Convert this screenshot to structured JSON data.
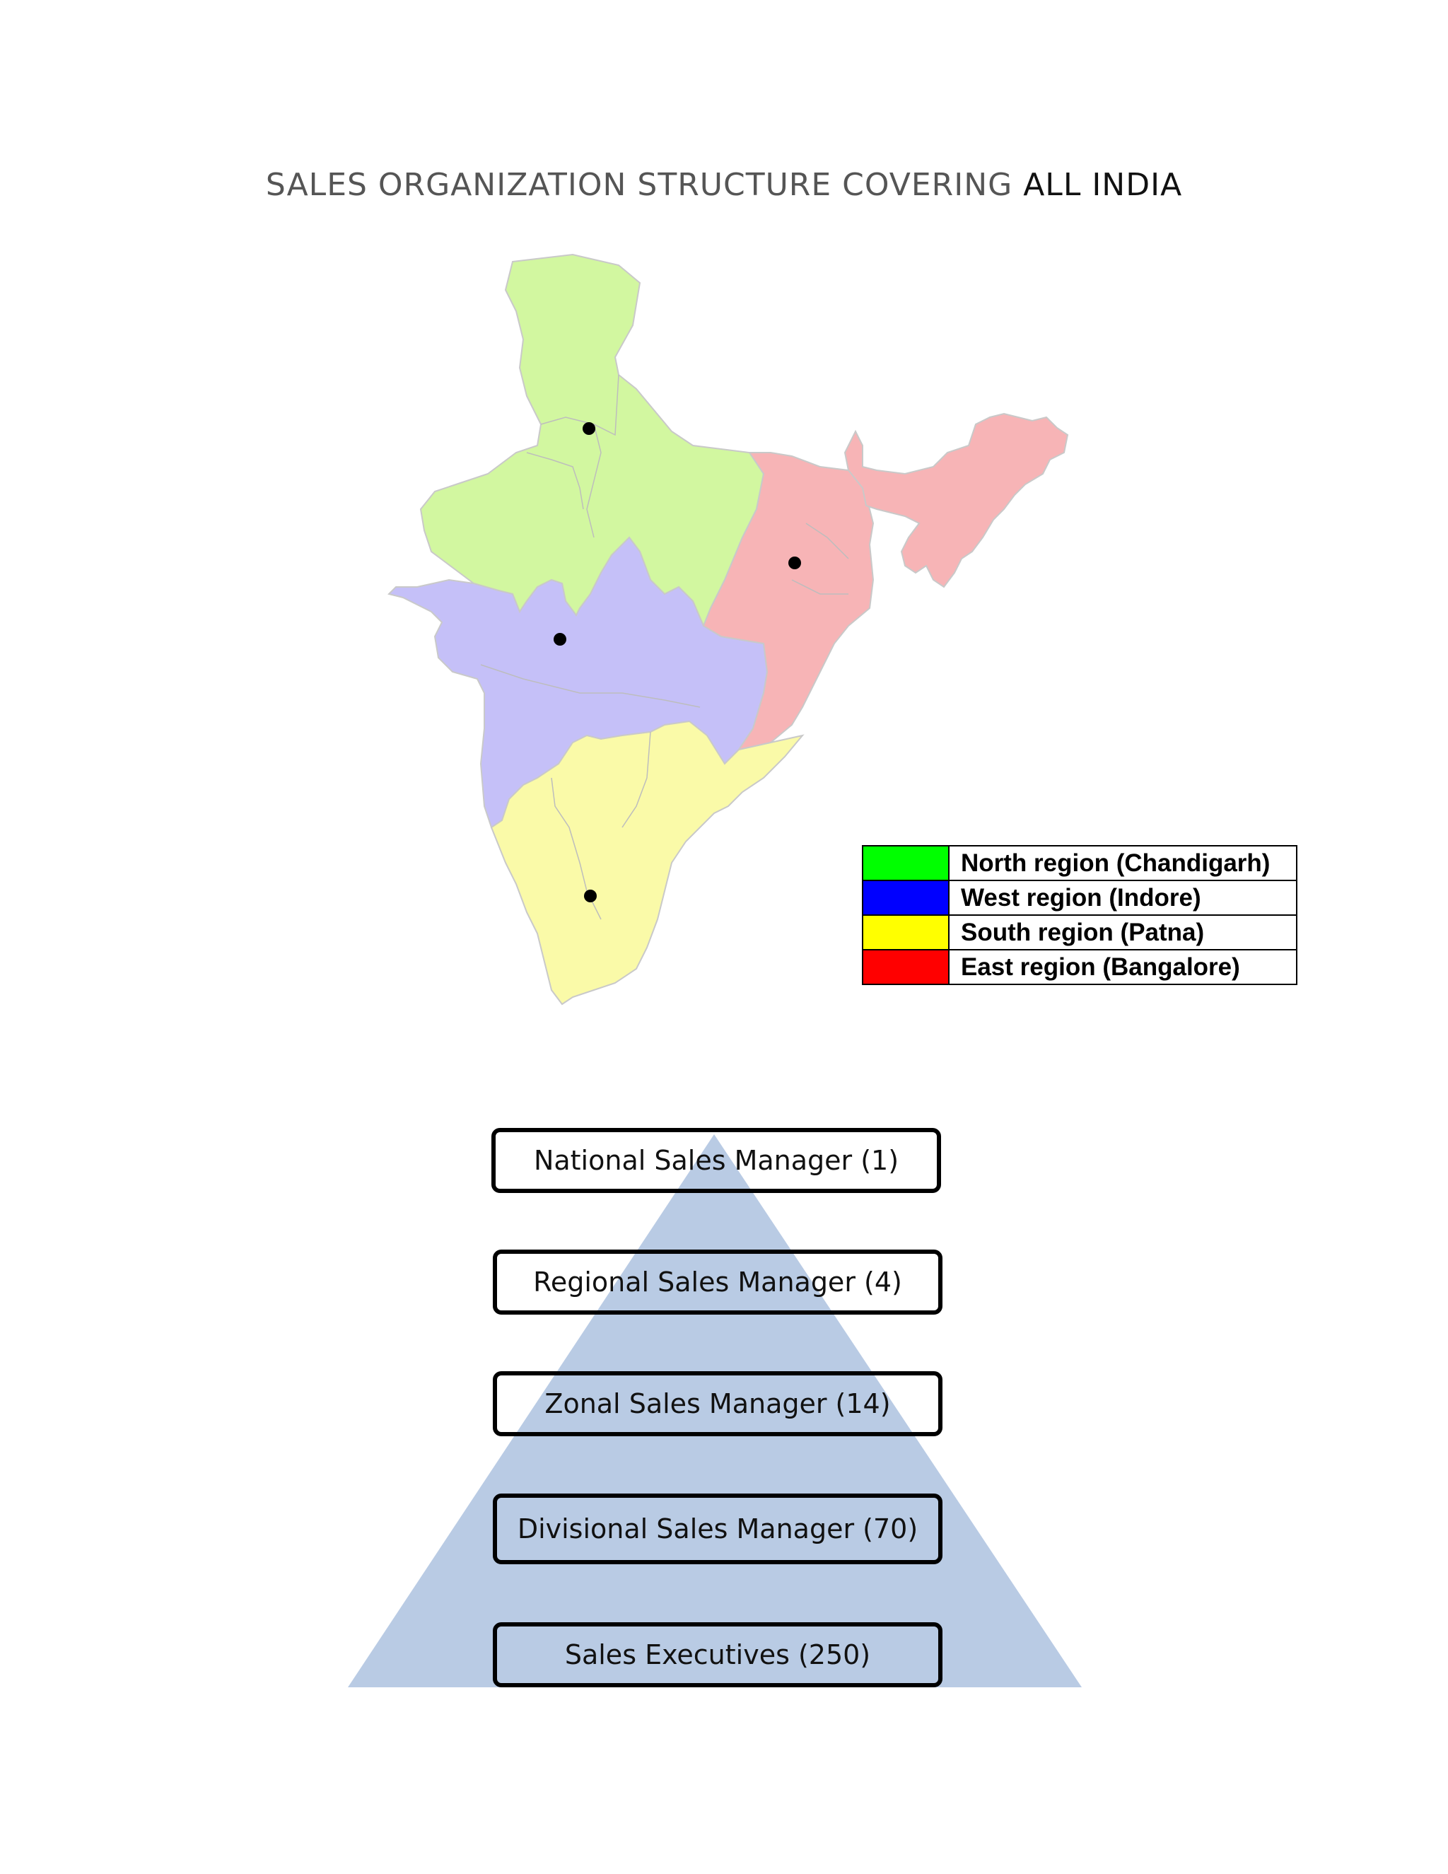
{
  "title": {
    "prefix": "SALES ORGANIZATION STRUCTURE COVERING",
    "emphasis": "ALL INDIA"
  },
  "colors": {
    "north_map": "#d2f7a0",
    "west_map": "#c5c0f8",
    "south_map": "#fafaa8",
    "east_map": "#f7b4b6",
    "pyramid": "#b9cbe4"
  },
  "legend": [
    {
      "label": "North region (Chandigarh)",
      "color": "#00ff00"
    },
    {
      "label": "West region (Indore)",
      "color": "#0000ff"
    },
    {
      "label": "South region (Patna)",
      "color": "#ffff00"
    },
    {
      "label": "East region (Bangalore)",
      "color": "#ff0000"
    }
  ],
  "hierarchy": [
    {
      "label": "National Sales Manager (1)"
    },
    {
      "label": "Regional Sales Manager (4)"
    },
    {
      "label": "Zonal Sales Manager (14)"
    },
    {
      "label": "Divisional Sales Manager (70)"
    },
    {
      "label": "Sales Executives (250)"
    }
  ]
}
